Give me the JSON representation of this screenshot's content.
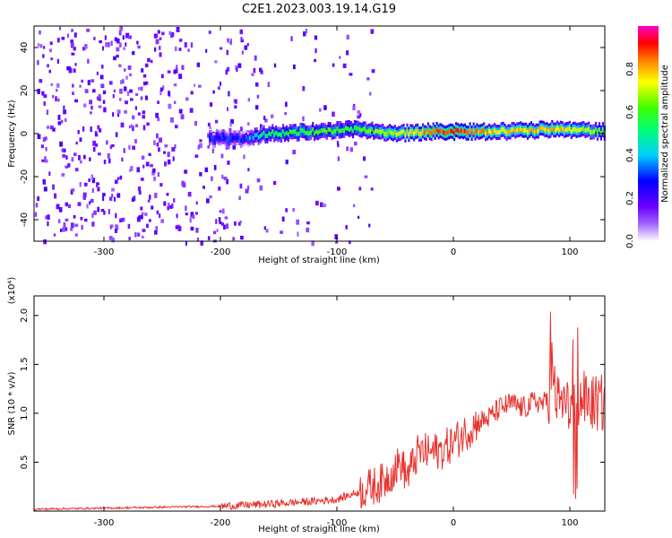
{
  "chart_data": [
    {
      "type": "heatmap",
      "title": "C2E1.2023.003.19.14.G19",
      "xlabel": "Height of straight line (km)",
      "ylabel": "Frequency (Hz)",
      "xlim": [
        -360,
        130
      ],
      "ylim": [
        -50,
        50
      ],
      "xticks": [
        -300,
        -200,
        -100,
        0,
        100
      ],
      "yticks": [
        -40,
        -20,
        0,
        20,
        40
      ],
      "colorbar": {
        "label": "Normalized spectral amplitude",
        "range": [
          0.0,
          1.0
        ],
        "ticks": [
          0.0,
          0.2,
          0.4,
          0.6,
          0.8
        ],
        "colors": [
          "#ffffff",
          "#8000ff",
          "#0000ff",
          "#00e5ff",
          "#00ff40",
          "#ffff00",
          "#ff8000",
          "#ff0000",
          "#ff00c0"
        ]
      },
      "ridge": [
        {
          "x": -210,
          "freq": -2,
          "amp": 0.3
        },
        {
          "x": -180,
          "freq": -3,
          "amp": 0.3
        },
        {
          "x": -160,
          "freq": 0,
          "amp": 0.55
        },
        {
          "x": -120,
          "freq": 1,
          "amp": 0.6
        },
        {
          "x": -80,
          "freq": 2,
          "amp": 0.6
        },
        {
          "x": -50,
          "freq": 0,
          "amp": 0.7
        },
        {
          "x": -20,
          "freq": 1,
          "amp": 0.85
        },
        {
          "x": 0,
          "freq": 1,
          "amp": 0.9
        },
        {
          "x": 40,
          "freq": 1,
          "amp": 0.75
        },
        {
          "x": 90,
          "freq": 2,
          "amp": 0.8
        },
        {
          "x": 130,
          "freq": 1,
          "amp": 0.6
        }
      ],
      "noise_region_x": [
        -360,
        -170
      ]
    },
    {
      "type": "line",
      "title": "",
      "xlabel": "Height of straight line (km)",
      "ylabel": "SNR (10 * v/v)",
      "scale_label": "(x10⁴)",
      "xlim": [
        -360,
        130
      ],
      "ylim": [
        0,
        2.2
      ],
      "xticks": [
        -300,
        -200,
        -100,
        0,
        100
      ],
      "yticks": [
        0.5,
        1.0,
        1.5,
        2.0
      ],
      "color": "#e8322e",
      "series": [
        {
          "x": [
            -360,
            -300,
            -250,
            -200,
            -160,
            -120,
            -100,
            -80,
            -60,
            -45,
            -40,
            -30,
            -20,
            -10,
            0,
            10,
            20,
            30,
            40,
            50,
            60,
            70,
            80,
            85,
            90,
            95,
            100,
            105,
            110,
            120,
            130
          ],
          "y": [
            0.02,
            0.03,
            0.04,
            0.05,
            0.07,
            0.1,
            0.12,
            0.2,
            0.3,
            0.5,
            0.35,
            0.6,
            0.6,
            0.62,
            0.7,
            0.8,
            0.9,
            0.95,
            1.05,
            1.1,
            1.05,
            1.12,
            1.1,
            1.3,
            1.1,
            1.12,
            1.0,
            1.1,
            1.15,
            1.1,
            1.1
          ]
        }
      ]
    }
  ]
}
